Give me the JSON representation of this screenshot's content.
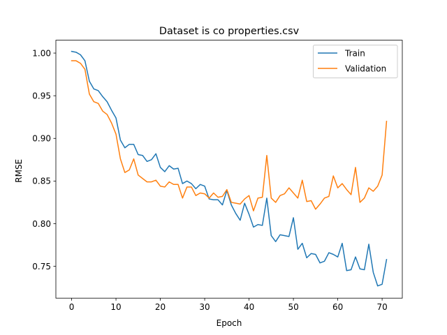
{
  "chart_data": {
    "type": "line",
    "title": "Dataset is co properties.csv",
    "xlabel": "Epoch",
    "ylabel": "RMSE",
    "xlim": [
      -3.55,
      74.55
    ],
    "ylim": [
      0.7127,
      1.0151
    ],
    "xticks": [
      0,
      10,
      20,
      30,
      40,
      50,
      60,
      70
    ],
    "yticks": [
      0.75,
      0.8,
      0.85,
      0.9,
      0.95,
      1.0
    ],
    "ytick_labels": [
      "0.75",
      "0.80",
      "0.85",
      "0.90",
      "0.95",
      "1.00"
    ],
    "grid": false,
    "legend_position": "upper right",
    "series": [
      {
        "name": "Train",
        "color": "#1f77b4",
        "values": [
          1.002,
          1.001,
          0.998,
          0.991,
          0.967,
          0.958,
          0.956,
          0.949,
          0.943,
          0.933,
          0.924,
          0.898,
          0.889,
          0.893,
          0.893,
          0.881,
          0.88,
          0.873,
          0.875,
          0.882,
          0.866,
          0.861,
          0.868,
          0.864,
          0.865,
          0.847,
          0.85,
          0.847,
          0.841,
          0.846,
          0.844,
          0.829,
          0.828,
          0.828,
          0.822,
          0.839,
          0.822,
          0.812,
          0.804,
          0.824,
          0.811,
          0.796,
          0.799,
          0.798,
          0.83,
          0.786,
          0.779,
          0.787,
          0.786,
          0.785,
          0.807,
          0.77,
          0.777,
          0.76,
          0.765,
          0.764,
          0.754,
          0.756,
          0.766,
          0.764,
          0.761,
          0.777,
          0.745,
          0.746,
          0.761,
          0.747,
          0.746,
          0.776,
          0.743,
          0.727,
          0.729,
          0.758
        ]
      },
      {
        "name": "Validation",
        "color": "#ff7f0e",
        "values": [
          0.991,
          0.991,
          0.988,
          0.981,
          0.952,
          0.943,
          0.941,
          0.932,
          0.928,
          0.918,
          0.905,
          0.876,
          0.86,
          0.863,
          0.876,
          0.857,
          0.853,
          0.849,
          0.849,
          0.851,
          0.844,
          0.843,
          0.849,
          0.846,
          0.846,
          0.83,
          0.843,
          0.843,
          0.833,
          0.836,
          0.835,
          0.83,
          0.836,
          0.831,
          0.832,
          0.84,
          0.825,
          0.824,
          0.823,
          0.829,
          0.833,
          0.815,
          0.83,
          0.831,
          0.88,
          0.83,
          0.825,
          0.833,
          0.835,
          0.842,
          0.836,
          0.83,
          0.851,
          0.826,
          0.827,
          0.817,
          0.823,
          0.83,
          0.832,
          0.856,
          0.842,
          0.847,
          0.84,
          0.834,
          0.866,
          0.825,
          0.83,
          0.842,
          0.838,
          0.844,
          0.857,
          0.92
        ]
      }
    ]
  }
}
